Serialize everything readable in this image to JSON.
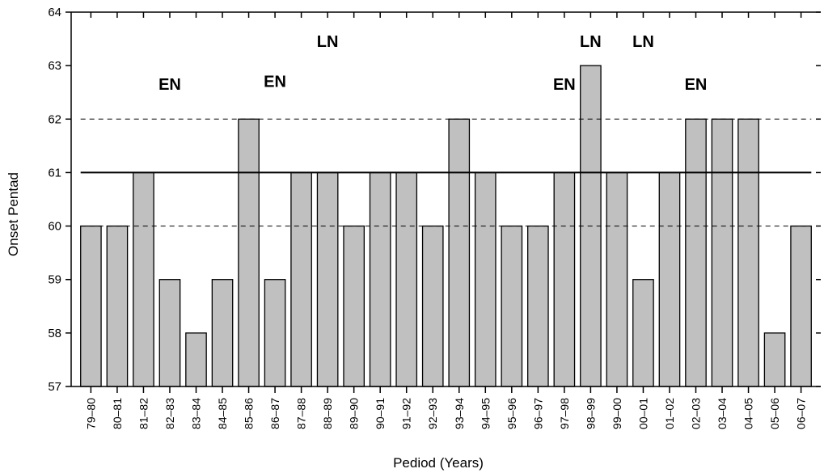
{
  "chart_data": {
    "type": "bar",
    "xlabel": "Pediod (Years)",
    "ylabel": "Onset Pentad",
    "ylim": [
      57,
      64
    ],
    "yticks": [
      57,
      58,
      59,
      60,
      61,
      62,
      63,
      64
    ],
    "grid": false,
    "bar_color": "#c0c0c0",
    "categories": [
      "79–80",
      "80–81",
      "81–82",
      "82–83",
      "83–84",
      "84–85",
      "85–86",
      "86–87",
      "87–88",
      "88–89",
      "89–90",
      "90–91",
      "91–92",
      "92–93",
      "93–94",
      "94–95",
      "95–96",
      "96–97",
      "97–98",
      "98–99",
      "99–00",
      "00–01",
      "01–02",
      "02–03",
      "03–04",
      "04–05",
      "05–06",
      "06–07"
    ],
    "values": [
      60,
      60,
      61,
      59,
      58,
      59,
      62,
      59,
      61,
      61,
      60,
      61,
      61,
      60,
      62,
      61,
      60,
      60,
      61,
      63,
      61,
      59,
      61,
      62,
      62,
      62,
      58,
      60
    ],
    "reference_lines": [
      {
        "value": 61,
        "style": "solid"
      },
      {
        "value": 62,
        "style": "dashed"
      },
      {
        "value": 60,
        "style": "dashed"
      }
    ],
    "annotations": [
      {
        "text": "EN",
        "category": "82–83",
        "y": 62.55
      },
      {
        "text": "EN",
        "category": "86–87",
        "y": 62.6
      },
      {
        "text": "LN",
        "category": "88–89",
        "y": 63.35
      },
      {
        "text": "EN",
        "category": "97–98",
        "y": 62.55
      },
      {
        "text": "LN",
        "category": "98–99",
        "y": 63.35
      },
      {
        "text": "LN",
        "category": "00–01",
        "y": 63.35
      },
      {
        "text": "EN",
        "category": "02–03",
        "y": 62.55
      }
    ]
  }
}
